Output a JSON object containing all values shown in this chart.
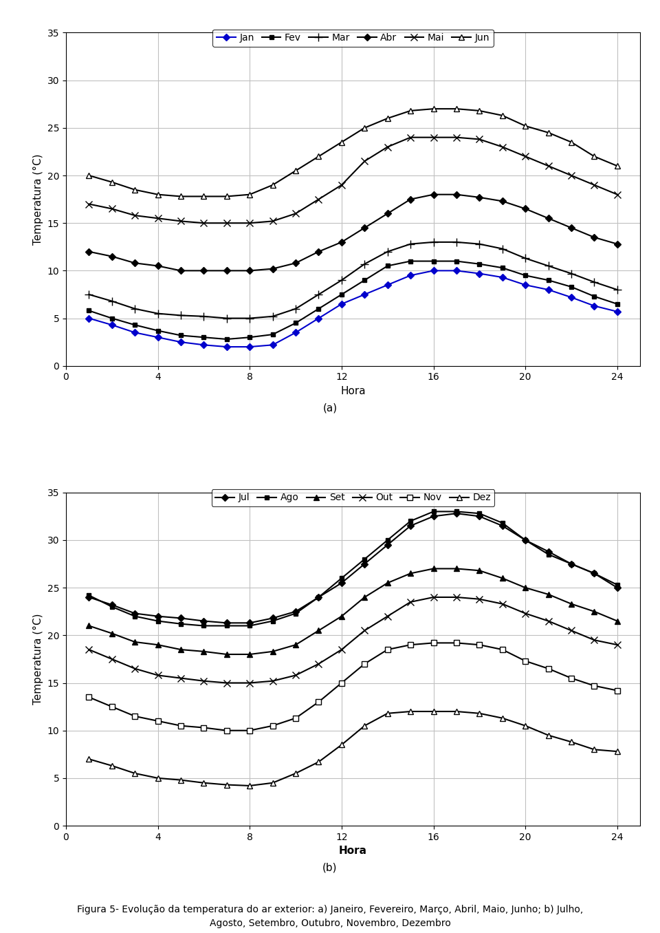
{
  "hours": [
    1,
    2,
    3,
    4,
    5,
    6,
    7,
    8,
    9,
    10,
    11,
    12,
    13,
    14,
    15,
    16,
    17,
    18,
    19,
    20,
    21,
    22,
    23,
    24
  ],
  "chart_a": {
    "Jan": [
      5.0,
      4.3,
      3.5,
      3.0,
      2.5,
      2.2,
      2.0,
      2.0,
      2.2,
      3.5,
      5.0,
      6.5,
      7.5,
      8.5,
      9.5,
      10.0,
      10.0,
      9.7,
      9.3,
      8.5,
      8.0,
      7.2,
      6.3,
      5.7
    ],
    "Fev": [
      5.8,
      5.0,
      4.3,
      3.7,
      3.2,
      3.0,
      2.8,
      3.0,
      3.3,
      4.5,
      6.0,
      7.5,
      9.0,
      10.5,
      11.0,
      11.0,
      11.0,
      10.7,
      10.3,
      9.5,
      9.0,
      8.3,
      7.3,
      6.5
    ],
    "Mar": [
      7.5,
      6.8,
      6.0,
      5.5,
      5.3,
      5.2,
      5.0,
      5.0,
      5.2,
      6.0,
      7.5,
      9.0,
      10.7,
      12.0,
      12.8,
      13.0,
      13.0,
      12.8,
      12.3,
      11.3,
      10.5,
      9.7,
      8.8,
      8.0
    ],
    "Abr": [
      12.0,
      11.5,
      10.8,
      10.5,
      10.0,
      10.0,
      10.0,
      10.0,
      10.2,
      10.8,
      12.0,
      13.0,
      14.5,
      16.0,
      17.5,
      18.0,
      18.0,
      17.7,
      17.3,
      16.5,
      15.5,
      14.5,
      13.5,
      12.8
    ],
    "Mai": [
      17.0,
      16.5,
      15.8,
      15.5,
      15.2,
      15.0,
      15.0,
      15.0,
      15.2,
      16.0,
      17.5,
      19.0,
      21.5,
      23.0,
      24.0,
      24.0,
      24.0,
      23.8,
      23.0,
      22.0,
      21.0,
      20.0,
      19.0,
      18.0
    ],
    "Jun": [
      20.0,
      19.3,
      18.5,
      18.0,
      17.8,
      17.8,
      17.8,
      18.0,
      19.0,
      20.5,
      22.0,
      23.5,
      25.0,
      26.0,
      26.8,
      27.0,
      27.0,
      26.8,
      26.3,
      25.2,
      24.5,
      23.5,
      22.0,
      21.0
    ]
  },
  "chart_b": {
    "Jul": [
      24.0,
      23.2,
      22.3,
      22.0,
      21.8,
      21.5,
      21.3,
      21.3,
      21.8,
      22.5,
      24.0,
      25.5,
      27.5,
      29.5,
      31.5,
      32.5,
      32.8,
      32.5,
      31.5,
      30.0,
      28.8,
      27.5,
      26.5,
      25.0
    ],
    "Ago": [
      24.2,
      23.0,
      22.0,
      21.5,
      21.2,
      21.0,
      21.0,
      21.0,
      21.5,
      22.3,
      24.0,
      26.0,
      28.0,
      30.0,
      32.0,
      33.0,
      33.0,
      32.8,
      31.8,
      30.0,
      28.5,
      27.5,
      26.5,
      25.3
    ],
    "Set": [
      21.0,
      20.2,
      19.3,
      19.0,
      18.5,
      18.3,
      18.0,
      18.0,
      18.3,
      19.0,
      20.5,
      22.0,
      24.0,
      25.5,
      26.5,
      27.0,
      27.0,
      26.8,
      26.0,
      25.0,
      24.3,
      23.3,
      22.5,
      21.5
    ],
    "Out": [
      18.5,
      17.5,
      16.5,
      15.8,
      15.5,
      15.2,
      15.0,
      15.0,
      15.2,
      15.8,
      17.0,
      18.5,
      20.5,
      22.0,
      23.5,
      24.0,
      24.0,
      23.8,
      23.3,
      22.3,
      21.5,
      20.5,
      19.5,
      19.0
    ],
    "Nov": [
      13.5,
      12.5,
      11.5,
      11.0,
      10.5,
      10.3,
      10.0,
      10.0,
      10.5,
      11.3,
      13.0,
      15.0,
      17.0,
      18.5,
      19.0,
      19.2,
      19.2,
      19.0,
      18.5,
      17.3,
      16.5,
      15.5,
      14.7,
      14.2
    ],
    "Dez": [
      7.0,
      6.3,
      5.5,
      5.0,
      4.8,
      4.5,
      4.3,
      4.2,
      4.5,
      5.5,
      6.7,
      8.5,
      10.5,
      11.8,
      12.0,
      12.0,
      12.0,
      11.8,
      11.3,
      10.5,
      9.5,
      8.8,
      8.0,
      7.8
    ]
  },
  "series_a_styles": {
    "Jan": {
      "color": "#0000cc",
      "marker": "D",
      "markersize": 5,
      "linewidth": 1.5,
      "markerfacecolor": "#0000cc"
    },
    "Fev": {
      "color": "#000000",
      "marker": "s",
      "markersize": 5,
      "linewidth": 1.5,
      "markerfacecolor": "#000000"
    },
    "Mar": {
      "color": "#000000",
      "marker": "+",
      "markersize": 8,
      "linewidth": 1.5,
      "markerfacecolor": "#000000"
    },
    "Abr": {
      "color": "#000000",
      "marker": "D",
      "markersize": 5,
      "linewidth": 1.5,
      "markerfacecolor": "#000000"
    },
    "Mai": {
      "color": "#000000",
      "marker": "x",
      "markersize": 7,
      "linewidth": 1.5,
      "markerfacecolor": "#000000"
    },
    "Jun": {
      "color": "#000000",
      "marker": "^",
      "markersize": 6,
      "linewidth": 1.5,
      "markerfacecolor": "white"
    }
  },
  "series_b_styles": {
    "Jul": {
      "color": "#000000",
      "marker": "D",
      "markersize": 5,
      "linewidth": 1.5,
      "markerfacecolor": "#000000"
    },
    "Ago": {
      "color": "#000000",
      "marker": "s",
      "markersize": 5,
      "linewidth": 1.5,
      "markerfacecolor": "#000000"
    },
    "Set": {
      "color": "#000000",
      "marker": "^",
      "markersize": 6,
      "linewidth": 1.5,
      "markerfacecolor": "#000000"
    },
    "Out": {
      "color": "#000000",
      "marker": "x",
      "markersize": 7,
      "linewidth": 1.5,
      "markerfacecolor": "#000000"
    },
    "Nov": {
      "color": "#000000",
      "marker": "s",
      "markersize": 6,
      "linewidth": 1.5,
      "markerfacecolor": "white"
    },
    "Dez": {
      "color": "#000000",
      "marker": "^",
      "markersize": 6,
      "linewidth": 1.5,
      "markerfacecolor": "white"
    }
  },
  "xlabel_a": "Hora",
  "xlabel_b": "Hora",
  "ylabel": "Temperatura (°C)",
  "label_a": "(a)",
  "label_b": "(b)",
  "caption_line1": "Figura 5- Evolução da temperatura do ar exterior: a) Janeiro, Fevereiro, Março, Abril, Maio, Junho; b) Julho,",
  "caption_line2": "Agosto, Setembro, Outubro, Novembro, Dezembro",
  "xlim": [
    0,
    25
  ],
  "ylim": [
    0,
    35
  ],
  "xticks": [
    0,
    4,
    8,
    12,
    16,
    20,
    24
  ],
  "yticks": [
    0,
    5,
    10,
    15,
    20,
    25,
    30,
    35
  ]
}
